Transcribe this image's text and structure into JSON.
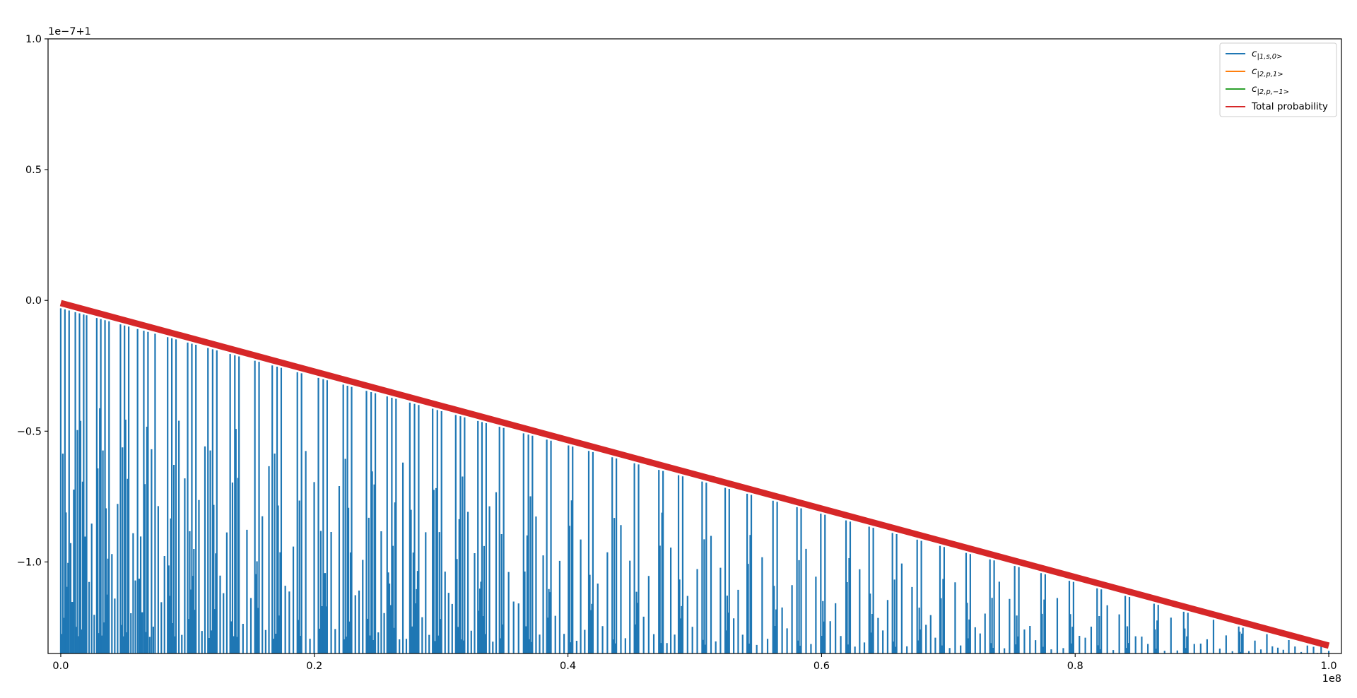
{
  "chart_data": {
    "type": "line",
    "title": "",
    "xlabel": "",
    "ylabel": "",
    "x_offset_label": "1e8",
    "y_offset_label": "1e−7+1",
    "xlim": [
      -0.01,
      1.01
    ],
    "ylim": [
      -1.35,
      1.0
    ],
    "x_ticks": [
      {
        "value": 0.0,
        "label": "0.0"
      },
      {
        "value": 0.2,
        "label": "0.2"
      },
      {
        "value": 0.4,
        "label": "0.4"
      },
      {
        "value": 0.6,
        "label": "0.6"
      },
      {
        "value": 0.8,
        "label": "0.8"
      },
      {
        "value": 1.0,
        "label": "1.0"
      }
    ],
    "y_ticks": [
      {
        "value": 1.0,
        "label": "1.0"
      },
      {
        "value": 0.5,
        "label": "0.5"
      },
      {
        "value": 0.0,
        "label": "0.0"
      },
      {
        "value": -0.5,
        "label": "−0.5"
      },
      {
        "value": -1.0,
        "label": "−1.0"
      }
    ],
    "grid": false,
    "legend_position": "top-right",
    "series": [
      {
        "name": "cₙ|1,s,0>",
        "legend_label": "c|1,s,0>",
        "color": "#1f77b4",
        "style": "oscillating-spikes",
        "peak_x": [
          0.0,
          0.0033,
          0.0066,
          0.0115,
          0.0148,
          0.0181,
          0.0204,
          0.0284,
          0.0316,
          0.0349,
          0.0381,
          0.0471,
          0.0503,
          0.0536,
          0.0606,
          0.0655,
          0.0688,
          0.0744,
          0.0843,
          0.0876,
          0.0909,
          0.1001,
          0.1034,
          0.1066,
          0.1161,
          0.1198,
          0.1231,
          0.1336,
          0.1373,
          0.1406,
          0.1531,
          0.1564,
          0.1668,
          0.1706,
          0.1739,
          0.1866,
          0.1899,
          0.2032,
          0.207,
          0.2101,
          0.2228,
          0.2261,
          0.2294,
          0.2411,
          0.2448,
          0.2481,
          0.2574,
          0.2611,
          0.2644,
          0.2753,
          0.279,
          0.2823,
          0.2933,
          0.297,
          0.3003,
          0.3115,
          0.3152,
          0.3185,
          0.329,
          0.3322,
          0.3355,
          0.346,
          0.3493,
          0.365,
          0.3688,
          0.372,
          0.3833,
          0.3866,
          0.4004,
          0.4037,
          0.4164,
          0.4197,
          0.4349,
          0.4382,
          0.4524,
          0.4557,
          0.4717,
          0.475,
          0.4872,
          0.4905,
          0.5058,
          0.5091,
          0.524,
          0.5272,
          0.5413,
          0.5446,
          0.5617,
          0.565,
          0.5806,
          0.5839,
          0.5994,
          0.6027,
          0.6193,
          0.6226,
          0.6375,
          0.6408,
          0.6559,
          0.6592,
          0.6754,
          0.6787,
          0.6934,
          0.6967,
          0.714,
          0.7173,
          0.7328,
          0.7361,
          0.7523,
          0.7556,
          0.7731,
          0.7764,
          0.7954,
          0.7987,
          0.8173,
          0.8206,
          0.8395,
          0.8428,
          0.8622,
          0.8655,
          0.8856,
          0.8889,
          0.9091,
          0.929,
          0.9323,
          0.9512,
          0.9685,
          0.988,
          1.0
        ]
      },
      {
        "name": "c|2,p,1>",
        "legend_label": "c|2,p,1>",
        "color": "#ff7f0e",
        "x": [],
        "y": []
      },
      {
        "name": "c|2,p,−1>",
        "legend_label": "c|2,p,−1>",
        "color": "#2ca02c",
        "x": [],
        "y": []
      },
      {
        "name": "Total probability",
        "legend_label": "Total probability",
        "color": "#d62728",
        "x": [
          0.0,
          1.0
        ],
        "y": [
          -0.01,
          -1.32
        ]
      }
    ],
    "legend": [
      {
        "label": "c",
        "subscript": "|1,s,0>",
        "color": "#1f77b4"
      },
      {
        "label": "c",
        "subscript": "|2,p,1>",
        "color": "#ff7f0e"
      },
      {
        "label": "c",
        "subscript": "|2,p,−1>",
        "color": "#2ca02c"
      },
      {
        "label": "Total probability",
        "subscript": "",
        "color": "#d62728"
      }
    ]
  }
}
